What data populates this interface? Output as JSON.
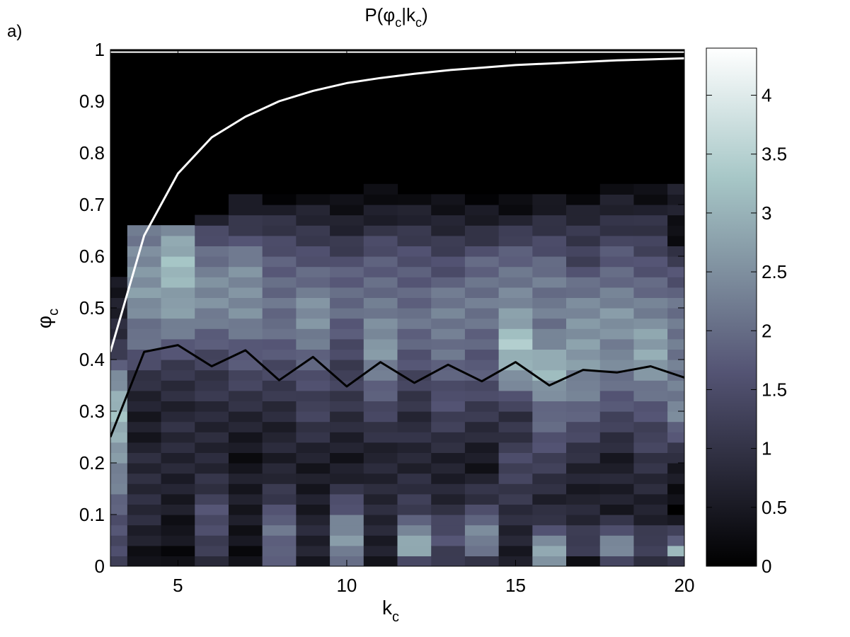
{
  "figure": {
    "panel_label": "a)"
  },
  "chart_data": {
    "type": "heatmap",
    "title_parts": {
      "main": "P(",
      "phi": "φ",
      "sub_c1": "c",
      "bar": "|k",
      "sub_c2": "c",
      "close": ")"
    },
    "xlabel": {
      "main": "k",
      "sub": "c"
    },
    "ylabel": {
      "main": "φ",
      "sub": "c"
    },
    "xlim": [
      3,
      20
    ],
    "ylim": [
      0,
      1
    ],
    "x_ticks": [
      5,
      10,
      15,
      20
    ],
    "x_tick_labels": [
      "5",
      "10",
      "15",
      "20"
    ],
    "y_ticks": [
      0,
      0.1,
      0.2,
      0.3,
      0.4,
      0.5,
      0.6,
      0.7,
      0.8,
      0.9,
      1
    ],
    "y_tick_labels": [
      "0",
      "0.1",
      "0.2",
      "0.3",
      "0.4",
      "0.5",
      "0.6",
      "0.7",
      "0.8",
      "0.9",
      "1"
    ],
    "colorbar": {
      "range": [
        0,
        4.4
      ],
      "ticks": [
        0,
        0.5,
        1,
        1.5,
        2,
        2.5,
        3,
        3.5,
        4
      ],
      "tick_labels": [
        "0",
        "0.5",
        "1",
        "1.5",
        "2",
        "2.5",
        "3",
        "3.5",
        "4"
      ],
      "colormap": "bone"
    },
    "k_columns": [
      3,
      4,
      5,
      6,
      7,
      8,
      9,
      10,
      11,
      12,
      13,
      14,
      15,
      16,
      17,
      18,
      19,
      20
    ],
    "phi_bin_width": 0.02,
    "density_profiles": [
      {
        "k": 3,
        "phi_max": 0.56,
        "knots": [
          [
            0,
            1.4
          ],
          [
            0.1,
            1.6
          ],
          [
            0.2,
            2.6
          ],
          [
            0.3,
            3.2
          ],
          [
            0.36,
            2.4
          ],
          [
            0.42,
            1.2
          ],
          [
            0.5,
            0.6
          ],
          [
            0.56,
            0.3
          ]
        ]
      },
      {
        "k": 4,
        "phi_max": 0.66,
        "knots": [
          [
            0,
            0.3
          ],
          [
            0.04,
            0.6
          ],
          [
            0.1,
            0.9
          ],
          [
            0.2,
            0.7
          ],
          [
            0.3,
            0.6
          ],
          [
            0.36,
            0.9
          ],
          [
            0.44,
            2.0
          ],
          [
            0.52,
            2.7
          ],
          [
            0.6,
            2.4
          ],
          [
            0.66,
            1.9
          ]
        ]
      },
      {
        "k": 5,
        "phi_max": 0.66,
        "knots": [
          [
            0,
            0.1
          ],
          [
            0.04,
            0.2
          ],
          [
            0.1,
            0.6
          ],
          [
            0.2,
            0.7
          ],
          [
            0.3,
            0.8
          ],
          [
            0.38,
            1.1
          ],
          [
            0.46,
            2.2
          ],
          [
            0.54,
            3.0
          ],
          [
            0.58,
            3.3
          ],
          [
            0.66,
            2.4
          ]
        ]
      },
      {
        "k": 6,
        "phi_max": 0.68,
        "knots": [
          [
            0,
            0.9
          ],
          [
            0.06,
            1.3
          ],
          [
            0.1,
            1.5
          ],
          [
            0.2,
            0.8
          ],
          [
            0.3,
            0.7
          ],
          [
            0.4,
            1.4
          ],
          [
            0.5,
            2.4
          ],
          [
            0.6,
            2.2
          ],
          [
            0.66,
            1.2
          ],
          [
            0.68,
            0.4
          ]
        ]
      },
      {
        "k": 7,
        "phi_max": 0.72,
        "knots": [
          [
            0,
            0.3
          ],
          [
            0.1,
            0.5
          ],
          [
            0.2,
            0.4
          ],
          [
            0.3,
            0.8
          ],
          [
            0.4,
            1.6
          ],
          [
            0.48,
            2.5
          ],
          [
            0.58,
            2.4
          ],
          [
            0.66,
            1.2
          ],
          [
            0.72,
            0.3
          ]
        ]
      },
      {
        "k": 8,
        "phi_max": 0.72,
        "knots": [
          [
            0,
            1.4
          ],
          [
            0.04,
            2.0
          ],
          [
            0.08,
            2.2
          ],
          [
            0.12,
            1.3
          ],
          [
            0.2,
            0.5
          ],
          [
            0.3,
            0.9
          ],
          [
            0.4,
            1.5
          ],
          [
            0.5,
            2.2
          ],
          [
            0.6,
            1.7
          ],
          [
            0.66,
            0.9
          ],
          [
            0.72,
            0.2
          ]
        ]
      },
      {
        "k": 9,
        "phi_max": 0.72,
        "knots": [
          [
            0,
            0.5
          ],
          [
            0.1,
            0.7
          ],
          [
            0.2,
            0.5
          ],
          [
            0.3,
            1.2
          ],
          [
            0.4,
            1.9
          ],
          [
            0.48,
            2.5
          ],
          [
            0.56,
            2.1
          ],
          [
            0.64,
            1.1
          ],
          [
            0.72,
            0.2
          ]
        ]
      },
      {
        "k": 10,
        "phi_max": 0.72,
        "knots": [
          [
            0,
            1.7
          ],
          [
            0.04,
            2.6
          ],
          [
            0.08,
            2.4
          ],
          [
            0.12,
            1.4
          ],
          [
            0.2,
            0.5
          ],
          [
            0.3,
            0.9
          ],
          [
            0.4,
            1.4
          ],
          [
            0.5,
            2.0
          ],
          [
            0.6,
            1.5
          ],
          [
            0.66,
            0.7
          ],
          [
            0.72,
            0.1
          ]
        ]
      },
      {
        "k": 11,
        "phi_max": 0.74,
        "knots": [
          [
            0,
            0.6
          ],
          [
            0.1,
            0.8
          ],
          [
            0.2,
            0.6
          ],
          [
            0.3,
            1.4
          ],
          [
            0.36,
            2.0
          ],
          [
            0.44,
            2.7
          ],
          [
            0.52,
            2.1
          ],
          [
            0.6,
            1.6
          ],
          [
            0.66,
            0.9
          ],
          [
            0.74,
            0.1
          ]
        ]
      },
      {
        "k": 12,
        "phi_max": 0.72,
        "knots": [
          [
            0,
            0.9
          ],
          [
            0.03,
            2.6
          ],
          [
            0.06,
            3.0
          ],
          [
            0.1,
            1.4
          ],
          [
            0.2,
            0.6
          ],
          [
            0.3,
            1.0
          ],
          [
            0.4,
            1.6
          ],
          [
            0.5,
            2.1
          ],
          [
            0.6,
            1.6
          ],
          [
            0.66,
            0.8
          ],
          [
            0.72,
            0.1
          ]
        ]
      },
      {
        "k": 13,
        "phi_max": 0.72,
        "knots": [
          [
            0,
            0.9
          ],
          [
            0.06,
            1.6
          ],
          [
            0.1,
            1.0
          ],
          [
            0.2,
            0.6
          ],
          [
            0.3,
            1.3
          ],
          [
            0.4,
            2.1
          ],
          [
            0.5,
            2.2
          ],
          [
            0.6,
            1.5
          ],
          [
            0.66,
            0.7
          ],
          [
            0.72,
            0.1
          ]
        ]
      },
      {
        "k": 14,
        "phi_max": 0.72,
        "knots": [
          [
            0,
            0.8
          ],
          [
            0.04,
            2.4
          ],
          [
            0.08,
            2.3
          ],
          [
            0.12,
            1.0
          ],
          [
            0.2,
            0.5
          ],
          [
            0.3,
            1.1
          ],
          [
            0.4,
            1.8
          ],
          [
            0.5,
            2.2
          ],
          [
            0.6,
            1.7
          ],
          [
            0.66,
            0.8
          ],
          [
            0.72,
            0.1
          ]
        ]
      },
      {
        "k": 15,
        "phi_max": 0.72,
        "knots": [
          [
            0,
            0.6
          ],
          [
            0.1,
            0.9
          ],
          [
            0.2,
            1.3
          ],
          [
            0.3,
            1.0
          ],
          [
            0.36,
            2.5
          ],
          [
            0.44,
            3.3
          ],
          [
            0.5,
            2.6
          ],
          [
            0.6,
            1.8
          ],
          [
            0.66,
            0.8
          ],
          [
            0.72,
            0.1
          ]
        ]
      },
      {
        "k": 16,
        "phi_max": 0.72,
        "knots": [
          [
            0,
            1.4
          ],
          [
            0.02,
            3.3
          ],
          [
            0.06,
            1.8
          ],
          [
            0.12,
            0.7
          ],
          [
            0.2,
            1.2
          ],
          [
            0.3,
            2.0
          ],
          [
            0.38,
            3.2
          ],
          [
            0.46,
            2.0
          ],
          [
            0.56,
            2.3
          ],
          [
            0.64,
            1.2
          ],
          [
            0.72,
            0.1
          ]
        ]
      },
      {
        "k": 17,
        "phi_max": 0.72,
        "knots": [
          [
            0,
            0.1
          ],
          [
            0.04,
            1.4
          ],
          [
            0.1,
            0.6
          ],
          [
            0.2,
            0.8
          ],
          [
            0.3,
            1.8
          ],
          [
            0.4,
            2.8
          ],
          [
            0.5,
            2.4
          ],
          [
            0.58,
            1.5
          ],
          [
            0.66,
            1.0
          ],
          [
            0.72,
            0.1
          ]
        ]
      },
      {
        "k": 18,
        "phi_max": 0.74,
        "knots": [
          [
            0,
            0.7
          ],
          [
            0.03,
            2.6
          ],
          [
            0.06,
            2.1
          ],
          [
            0.1,
            0.5
          ],
          [
            0.2,
            0.6
          ],
          [
            0.3,
            1.5
          ],
          [
            0.4,
            2.3
          ],
          [
            0.48,
            2.7
          ],
          [
            0.56,
            1.9
          ],
          [
            0.64,
            1.3
          ],
          [
            0.74,
            0.3
          ]
        ]
      },
      {
        "k": 19,
        "phi_max": 0.74,
        "knots": [
          [
            0,
            0.3
          ],
          [
            0.04,
            1.6
          ],
          [
            0.1,
            0.6
          ],
          [
            0.2,
            0.9
          ],
          [
            0.3,
            1.7
          ],
          [
            0.4,
            2.8
          ],
          [
            0.5,
            2.4
          ],
          [
            0.58,
            1.6
          ],
          [
            0.66,
            0.9
          ],
          [
            0.74,
            0.2
          ]
        ]
      },
      {
        "k": 20,
        "phi_max": 0.74,
        "knots": [
          [
            0,
            0.3
          ],
          [
            0.03,
            2.9
          ],
          [
            0.06,
            1.3
          ],
          [
            0.1,
            0.2
          ],
          [
            0.2,
            0.6
          ],
          [
            0.3,
            2.4
          ],
          [
            0.4,
            2.2
          ],
          [
            0.5,
            2.0
          ],
          [
            0.58,
            1.6
          ],
          [
            0.64,
            0.1
          ],
          [
            0.7,
            0.6
          ],
          [
            0.74,
            0.4
          ]
        ]
      }
    ],
    "series": [
      {
        "color": "#ffffff",
        "points": [
          [
            3,
            0.415
          ],
          [
            4,
            0.64
          ],
          [
            5,
            0.76
          ],
          [
            6,
            0.83
          ],
          [
            7,
            0.87
          ],
          [
            8,
            0.9
          ],
          [
            9,
            0.92
          ],
          [
            10,
            0.935
          ],
          [
            11,
            0.945
          ],
          [
            12,
            0.953
          ],
          [
            13,
            0.96
          ],
          [
            14,
            0.965
          ],
          [
            15,
            0.97
          ],
          [
            16,
            0.973
          ],
          [
            17,
            0.976
          ],
          [
            18,
            0.979
          ],
          [
            19,
            0.981
          ],
          [
            20,
            0.983
          ]
        ]
      },
      {
        "color": "#000000",
        "points": [
          [
            3,
            0.25
          ],
          [
            4,
            0.415
          ],
          [
            5,
            0.428
          ],
          [
            6,
            0.387
          ],
          [
            7,
            0.418
          ],
          [
            8,
            0.36
          ],
          [
            9,
            0.405
          ],
          [
            10,
            0.348
          ],
          [
            11,
            0.395
          ],
          [
            12,
            0.355
          ],
          [
            13,
            0.39
          ],
          [
            14,
            0.358
          ],
          [
            15,
            0.395
          ],
          [
            16,
            0.35
          ],
          [
            17,
            0.38
          ],
          [
            18,
            0.375
          ],
          [
            19,
            0.387
          ],
          [
            20,
            0.365
          ]
        ]
      }
    ],
    "grid": false,
    "legend": "none"
  }
}
